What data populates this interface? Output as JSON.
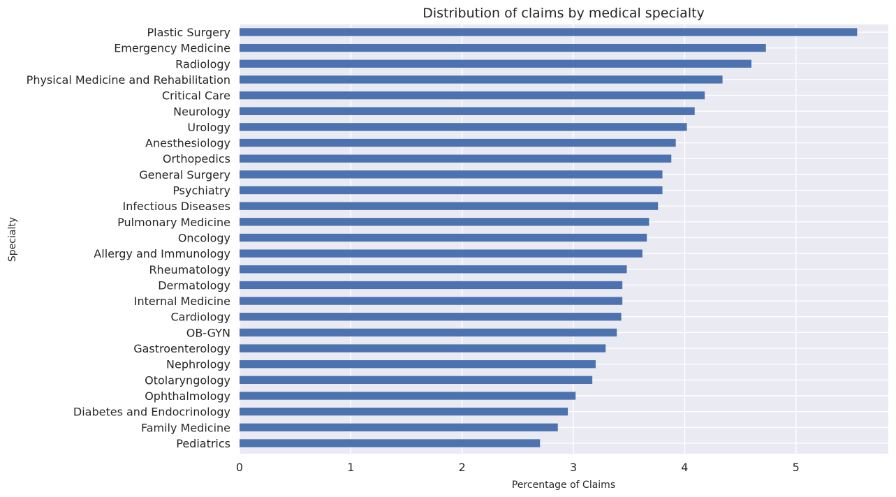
{
  "chart_data": {
    "type": "bar",
    "orientation": "horizontal",
    "title": "Distribution of claims by medical specialty",
    "xlabel": "Percentage of Claims",
    "ylabel": "Specialty",
    "categories": [
      "Plastic Surgery",
      "Emergency Medicine",
      "Radiology",
      "Physical Medicine and Rehabilitation",
      "Critical Care",
      "Neurology",
      "Urology",
      "Anesthesiology",
      "Orthopedics",
      "General Surgery",
      "Psychiatry",
      "Infectious Diseases",
      "Pulmonary Medicine",
      "Oncology",
      "Allergy and Immunology",
      "Rheumatology",
      "Dermatology",
      "Internal Medicine",
      "Cardiology",
      "OB-GYN",
      "Gastroenterology",
      "Nephrology",
      "Otolaryngology",
      "Ophthalmology",
      "Diabetes and Endocrinology",
      "Family Medicine",
      "Pediatrics"
    ],
    "values": [
      5.55,
      4.73,
      4.6,
      4.34,
      4.18,
      4.09,
      4.02,
      3.92,
      3.88,
      3.8,
      3.8,
      3.76,
      3.68,
      3.66,
      3.62,
      3.48,
      3.44,
      3.44,
      3.43,
      3.39,
      3.29,
      3.2,
      3.17,
      3.02,
      2.95,
      2.86,
      2.7
    ],
    "xlim": [
      0,
      5.83
    ],
    "xticks": [
      0,
      1,
      2,
      3,
      4,
      5
    ],
    "grid": true,
    "bar_color": "#4c72b0",
    "background_color": "#eaeaf2",
    "grid_color": "#ffffff"
  }
}
